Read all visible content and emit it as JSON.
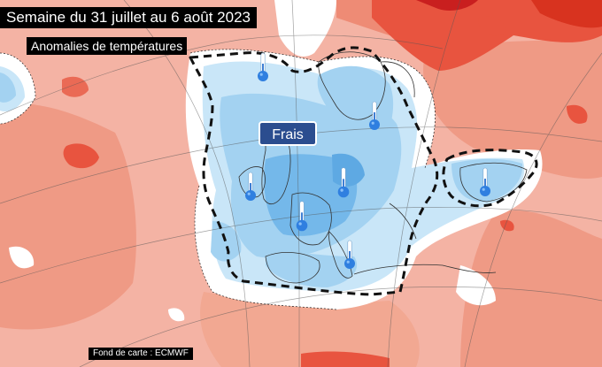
{
  "title": "Semaine du 31 juillet au 6 août 2023",
  "subtitle": "Anomalies de températures",
  "credit": "Fond de carte : ECMWF",
  "zone_label": "Frais",
  "colors": {
    "warm_light": "#f4b3a4",
    "warm_mid": "#ee8b75",
    "warm_strong": "#e8543f",
    "warm_deep": "#c91f1f",
    "neutral": "#ffffff",
    "cool_light": "#c9e6f8",
    "cool_mid": "#a3d2f1",
    "cool_strong": "#74b8ea",
    "frais_badge": "#2b4d8f"
  },
  "thermometers": [
    {
      "name": "thermometer-icon-north-sea"
    },
    {
      "name": "thermometer-icon-scandinavia"
    },
    {
      "name": "thermometer-icon-ireland"
    },
    {
      "name": "thermometer-icon-germany"
    },
    {
      "name": "thermometer-icon-france"
    },
    {
      "name": "thermometer-icon-italy"
    },
    {
      "name": "thermometer-icon-black-sea"
    }
  ]
}
